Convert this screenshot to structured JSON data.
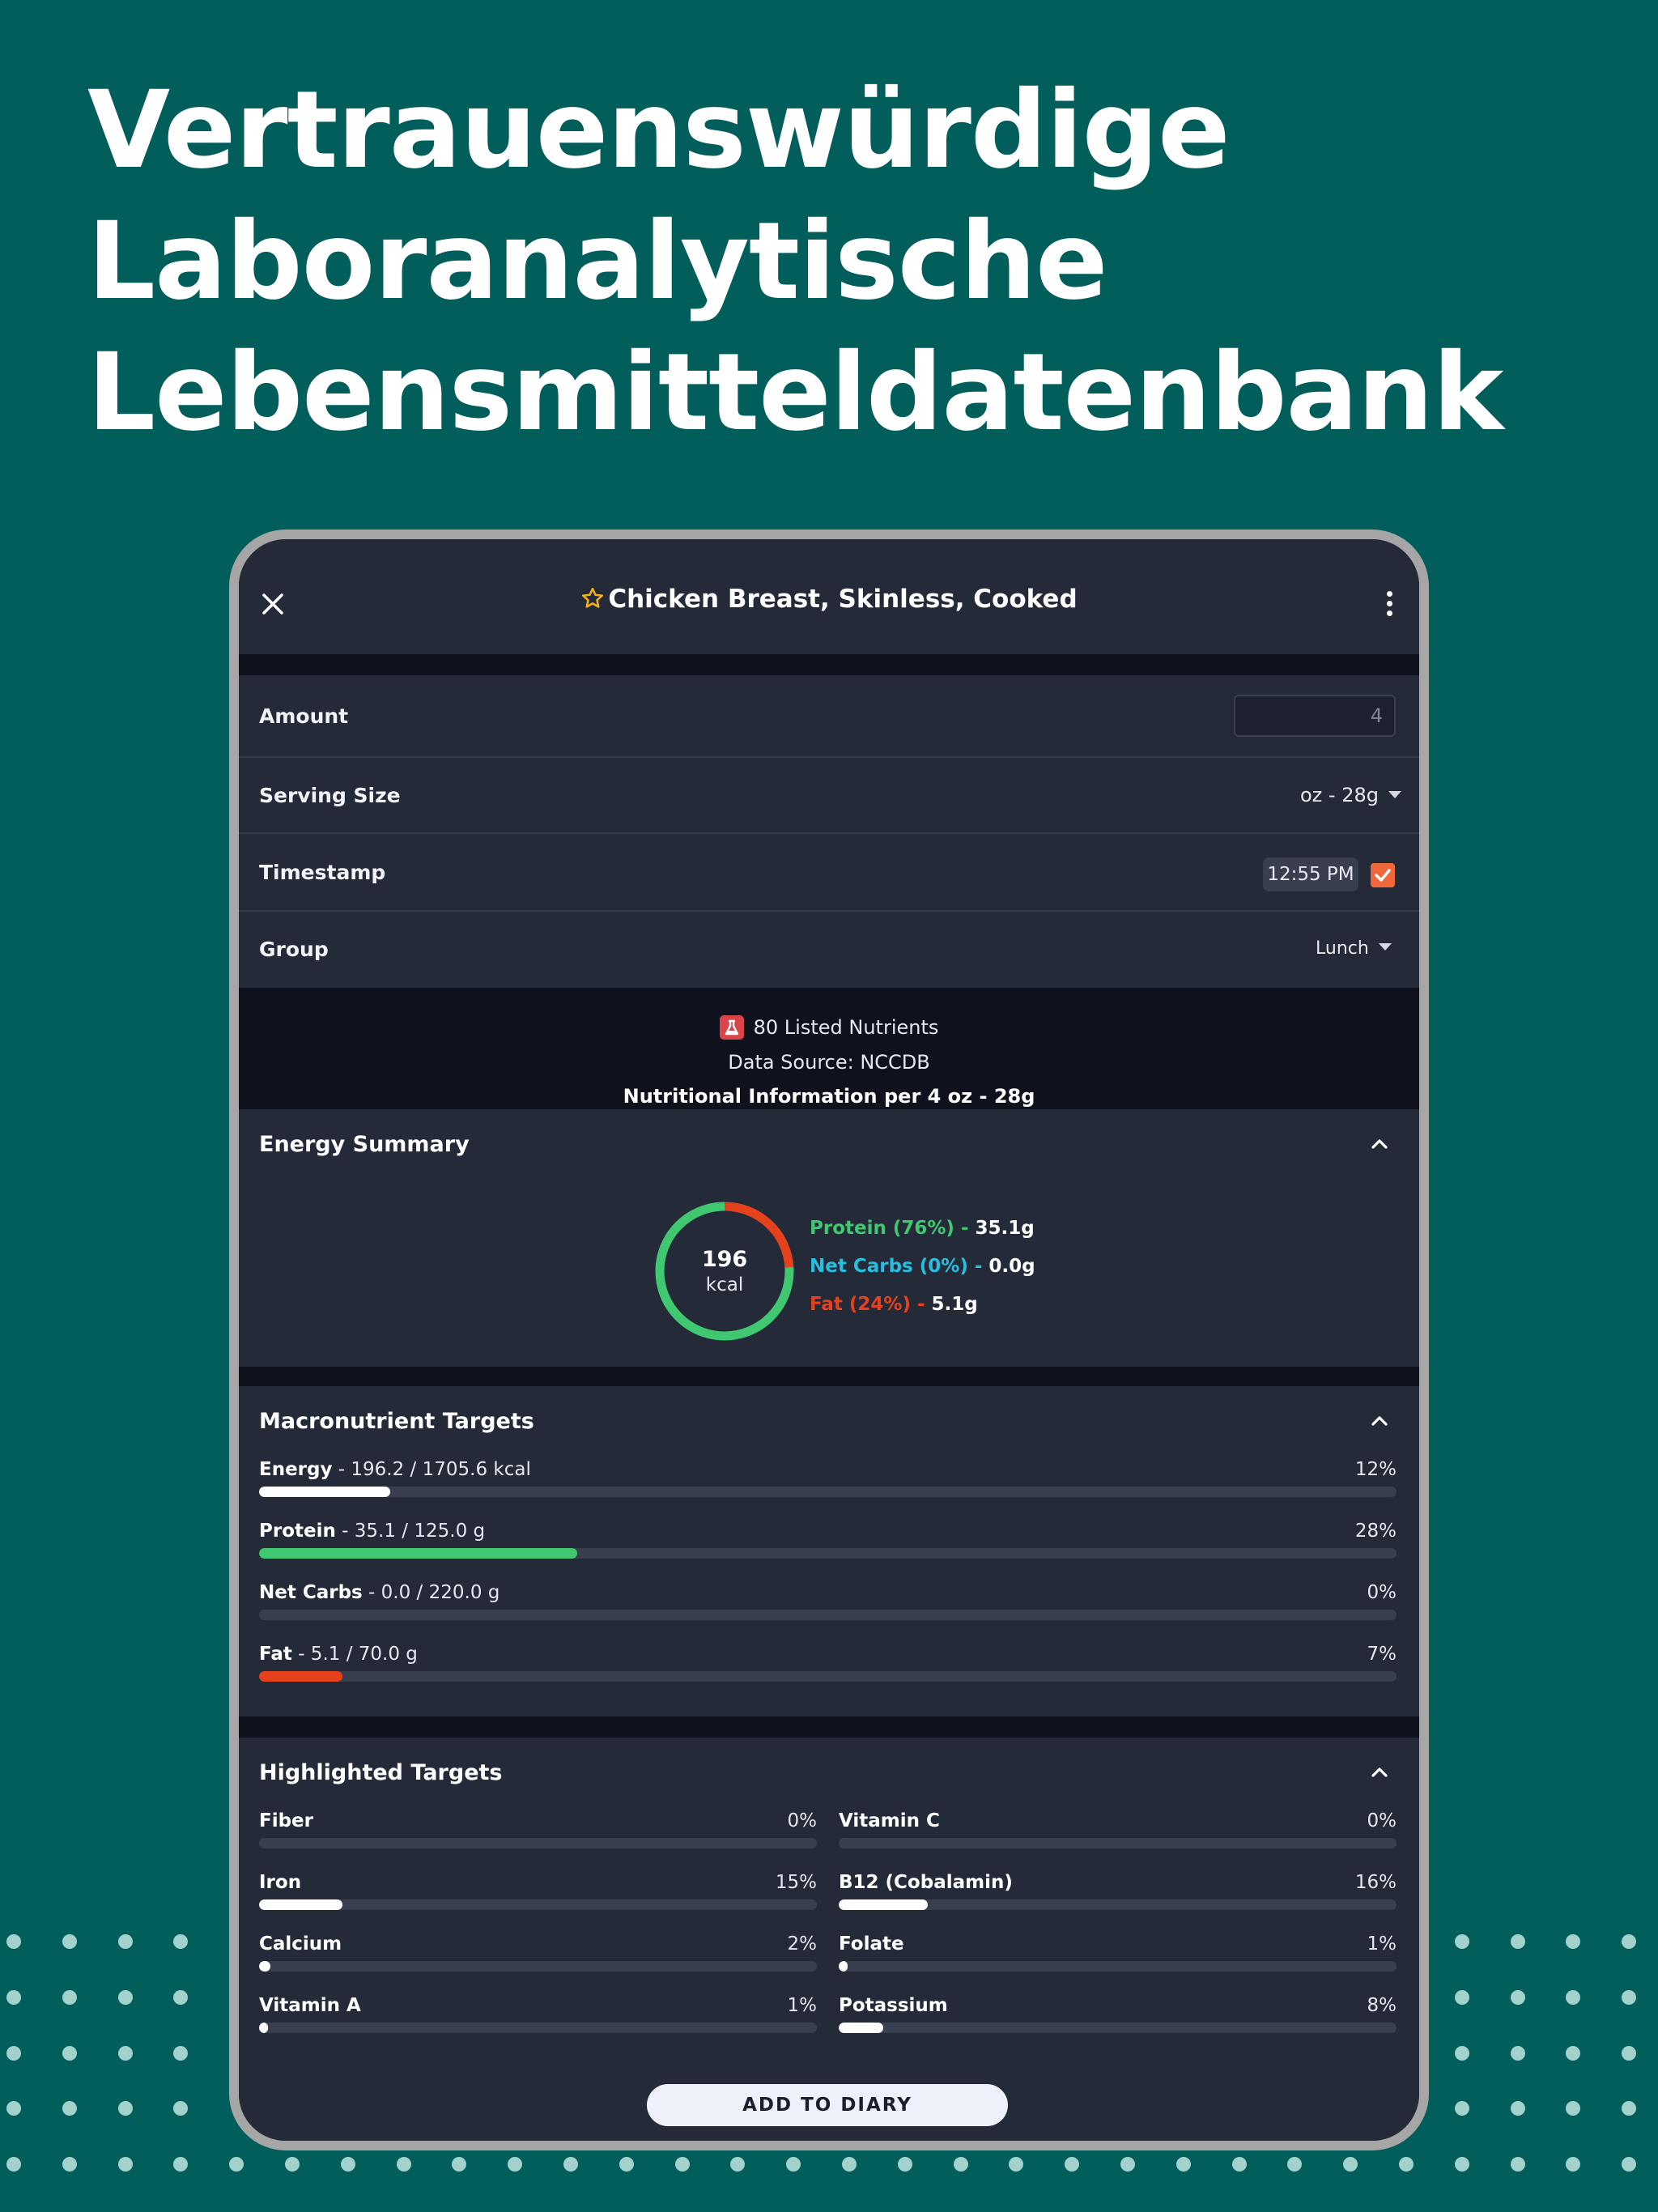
{
  "headline": [
    "Vertrauenswürdige",
    "Laboranalytische",
    "Lebensmitteldatenbank"
  ],
  "colors": {
    "background": "#015e5a",
    "card": "#252a39",
    "screen_bg": "#0f111c",
    "protein": "#3fc86f",
    "net_carbs": "#27bfe0",
    "fat": "#e4411c",
    "energy": "#ffffff",
    "accent_checkbox": "#f2673a",
    "star": "#f2b21b"
  },
  "header": {
    "title": "Chicken Breast, Skinless, Cooked",
    "close_icon": "close-icon",
    "favorite_icon": "star-icon",
    "menu_icon": "more-vertical-icon"
  },
  "form": {
    "amount_label": "Amount",
    "amount_value": "4",
    "serving_label": "Serving Size",
    "serving_value": "oz - 28g",
    "timestamp_label": "Timestamp",
    "timestamp_value": "12:55 PM",
    "timestamp_checked": true,
    "group_label": "Group",
    "group_value": "Lunch"
  },
  "info": {
    "listed_nutrients": "80 Listed Nutrients",
    "data_source": "Data Source: NCCDB",
    "per_serving": "Nutritional Information per 4 oz - 28g"
  },
  "energy_summary": {
    "title": "Energy Summary",
    "kcal": "196",
    "unit": "kcal",
    "protein_label": "Protein (76%) - ",
    "protein_value": "35.1g",
    "protein_share": 0.76,
    "carbs_label": "Net Carbs (0%) - ",
    "carbs_value": "0.0g",
    "carbs_share": 0.0,
    "fat_label": "Fat (24%) - ",
    "fat_value": "5.1g",
    "fat_share": 0.24
  },
  "macro_targets": {
    "title": "Macronutrient Targets",
    "items": [
      {
        "name": "Energy",
        "detail": " - 196.2 / 1705.6 kcal",
        "pct": "12%",
        "fraction": 0.115,
        "color": "#ffffff"
      },
      {
        "name": "Protein",
        "detail": " - 35.1 / 125.0 g",
        "pct": "28%",
        "fraction": 0.28,
        "color": "#3fc86f"
      },
      {
        "name": "Net Carbs",
        "detail": " - 0.0 / 220.0 g",
        "pct": "0%",
        "fraction": 0.0,
        "color": "#27bfe0"
      },
      {
        "name": "Fat",
        "detail": " - 5.1 / 70.0 g",
        "pct": "7%",
        "fraction": 0.073,
        "color": "#e4411c"
      }
    ]
  },
  "highlighted_targets": {
    "title": "Highlighted Targets",
    "items": [
      {
        "name": "Fiber",
        "pct": "0%",
        "fraction": 0.0
      },
      {
        "name": "Vitamin C",
        "pct": "0%",
        "fraction": 0.0
      },
      {
        "name": "Iron",
        "pct": "15%",
        "fraction": 0.15
      },
      {
        "name": "B12 (Cobalamin)",
        "pct": "16%",
        "fraction": 0.16
      },
      {
        "name": "Calcium",
        "pct": "2%",
        "fraction": 0.02
      },
      {
        "name": "Folate",
        "pct": "1%",
        "fraction": 0.01
      },
      {
        "name": "Vitamin A",
        "pct": "1%",
        "fraction": 0.01
      },
      {
        "name": "Potassium",
        "pct": "8%",
        "fraction": 0.08
      }
    ]
  },
  "actions": {
    "add_to_diary": "ADD TO DIARY"
  }
}
